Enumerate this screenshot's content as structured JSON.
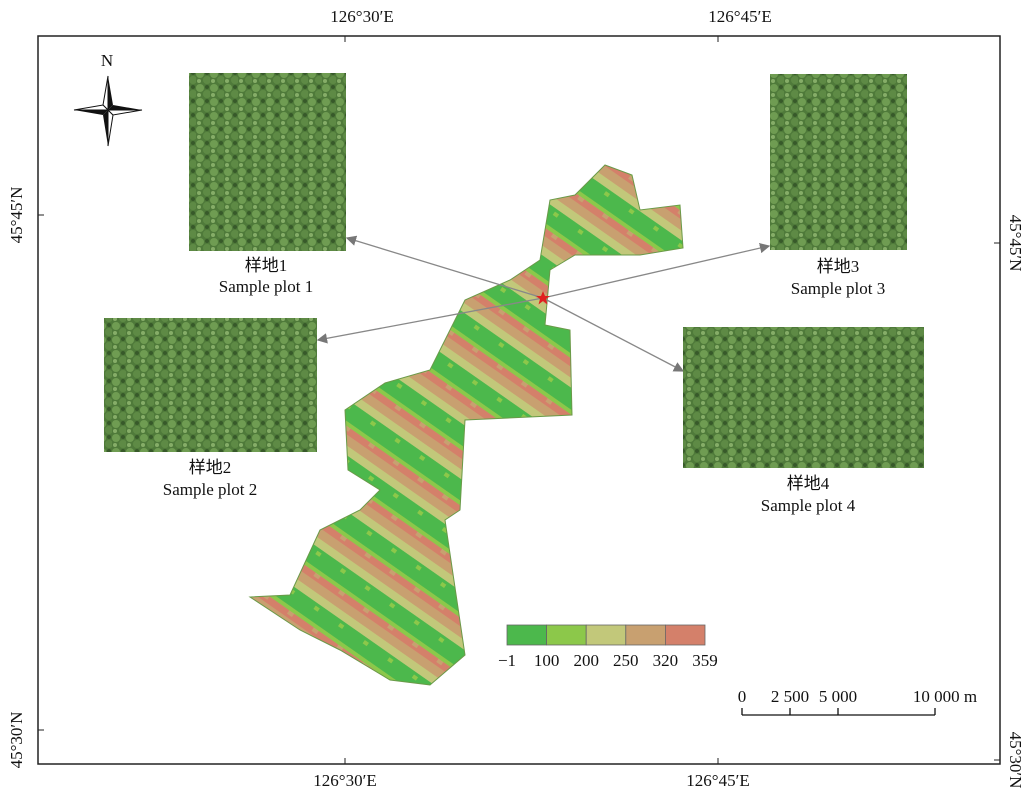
{
  "map": {
    "graticule": {
      "top": [
        "126°30′E",
        "126°45′E"
      ],
      "bottom": [
        "126°30′E",
        "126°45′E"
      ],
      "left": [
        "45°45′N",
        "45°30′N"
      ],
      "right": [
        "45°45′N",
        "45°30′N"
      ]
    },
    "north": "N",
    "plots": [
      {
        "name_cn": "样地1",
        "name_en": "Sample plot 1"
      },
      {
        "name_cn": "样地2",
        "name_en": "Sample plot 2"
      },
      {
        "name_cn": "样地3",
        "name_en": "Sample plot 3"
      },
      {
        "name_cn": "样地4",
        "name_en": "Sample plot 4"
      }
    ],
    "legend": {
      "labels": [
        "−1",
        "100",
        "200",
        "250",
        "320",
        "359"
      ],
      "colors": [
        "#4cb84c",
        "#8cc84a",
        "#c2c87a",
        "#c8a070",
        "#d4806a"
      ]
    },
    "scale_bar": {
      "labels": [
        "0",
        "2 500",
        "5 000",
        "10 000 m"
      ]
    }
  }
}
